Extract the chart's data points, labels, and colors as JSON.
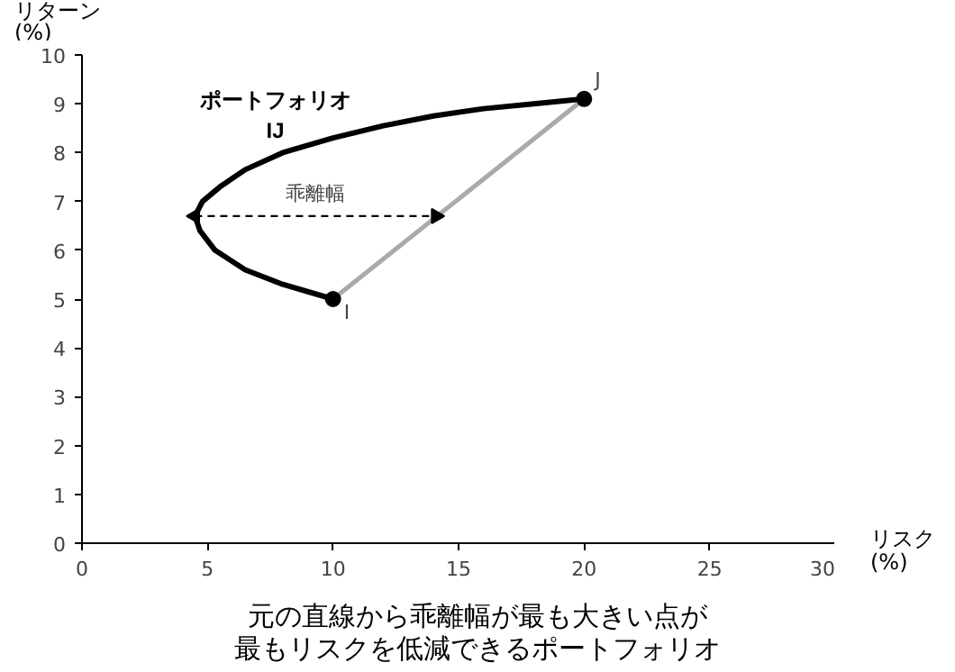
{
  "chart_data": {
    "type": "line",
    "xlabel": "リスク\n(%)",
    "ylabel": "リターン\n(%)",
    "xlim": [
      0,
      30
    ],
    "ylim": [
      0,
      10
    ],
    "xticks": [
      0,
      5,
      10,
      15,
      20,
      25,
      30
    ],
    "yticks": [
      0,
      1,
      2,
      3,
      4,
      5,
      6,
      7,
      8,
      9,
      10
    ],
    "grid": false,
    "legend": false,
    "series": [
      {
        "name": "ポートフォリオ\nIJ",
        "color": "#000000",
        "x": [
          10,
          8,
          6.5,
          5.3,
          4.7,
          4.5,
          4.8,
          5.5,
          6.5,
          8,
          10,
          12,
          14,
          16,
          18,
          20
        ],
        "values": [
          5,
          5.3,
          5.6,
          6.0,
          6.4,
          6.7,
          7.0,
          7.3,
          7.65,
          8.0,
          8.3,
          8.55,
          8.75,
          8.9,
          9.0,
          9.1
        ]
      },
      {
        "color": "#aaaaaa",
        "x": [
          10,
          20
        ],
        "values": [
          5,
          9.1
        ]
      },
      {
        "type": "scatter",
        "marker": "circle",
        "color": "#000000",
        "x": [
          10,
          20
        ],
        "values": [
          5,
          9.1
        ]
      },
      {
        "color": "#000000",
        "line_style": "dashed",
        "marker": "triangle",
        "x": [
          4.5,
          14.1
        ],
        "values": [
          6.7,
          6.7
        ]
      }
    ],
    "annotations": [
      {
        "text": "I",
        "x": 10,
        "y": 5
      },
      {
        "text": "J",
        "x": 20,
        "y": 9.1
      },
      "乖離幅",
      "元の直線から乖離幅が最も大きい点が",
      "最もリスクを低減できるポートフォリオ"
    ]
  }
}
